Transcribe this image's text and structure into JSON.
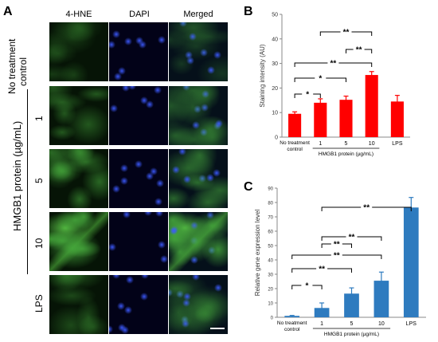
{
  "panel_a": {
    "label": "A",
    "columns": [
      "4-HNE",
      "DAPI",
      "Merged"
    ],
    "row_label_top": [
      "No treatment",
      "control"
    ],
    "group_label": "HMGB1 protein (µg/mL)",
    "row_labels": [
      "1",
      "5",
      "10",
      "LPS"
    ]
  },
  "panel_b": {
    "label": "B"
  },
  "panel_c": {
    "label": "C"
  },
  "chart_data": [
    {
      "type": "bar",
      "categories": [
        "No treatment control",
        "1",
        "5",
        "10",
        "LPS"
      ],
      "values": [
        9.5,
        14,
        15.2,
        25.3,
        14.5
      ],
      "errors": [
        0.8,
        1.6,
        1.5,
        1.4,
        2.5
      ],
      "bar_color": "#ff0000",
      "ylabel": "Staining intensity (AU)",
      "xgroup_label": "HMGB1 protein (µg/mL)",
      "category_labels": [
        "No treatment",
        "control",
        "1",
        "5",
        "10",
        "LPS"
      ],
      "ylim": [
        0,
        50
      ],
      "yticks": [
        0,
        10,
        20,
        30,
        40,
        50
      ],
      "brackets": [
        {
          "from": 0,
          "to": 1,
          "label": "*"
        },
        {
          "from": 0,
          "to": 2,
          "label": "*"
        },
        {
          "from": 0,
          "to": 3,
          "label": "**"
        },
        {
          "from": 2,
          "to": 3,
          "label": "**"
        },
        {
          "from": 1,
          "to": 3,
          "label": "**"
        }
      ]
    },
    {
      "type": "bar",
      "categories": [
        "No treatment control",
        "1",
        "5",
        "10",
        "LPS"
      ],
      "values": [
        1,
        6.5,
        16.5,
        25.5,
        76.5
      ],
      "errors": [
        0.3,
        3.5,
        4,
        6,
        7
      ],
      "bar_color": "#2e7bbf",
      "ylabel": "Relative gene expression level",
      "xgroup_label": "HMGB1 protein (µg/mL)",
      "category_labels": [
        "No treatment",
        "control",
        "1",
        "5",
        "10",
        "LPS"
      ],
      "ylim": [
        0,
        90
      ],
      "yticks": [
        0,
        10,
        20,
        30,
        40,
        50,
        60,
        70,
        80,
        90
      ],
      "brackets": [
        {
          "from": 0,
          "to": 1,
          "label": "*"
        },
        {
          "from": 0,
          "to": 2,
          "label": "**"
        },
        {
          "from": 0,
          "to": 3,
          "label": "**"
        },
        {
          "from": 1,
          "to": 2,
          "label": "**"
        },
        {
          "from": 1,
          "to": 3,
          "label": "**"
        },
        {
          "from": 1,
          "to": 4,
          "label": "**"
        }
      ]
    }
  ]
}
